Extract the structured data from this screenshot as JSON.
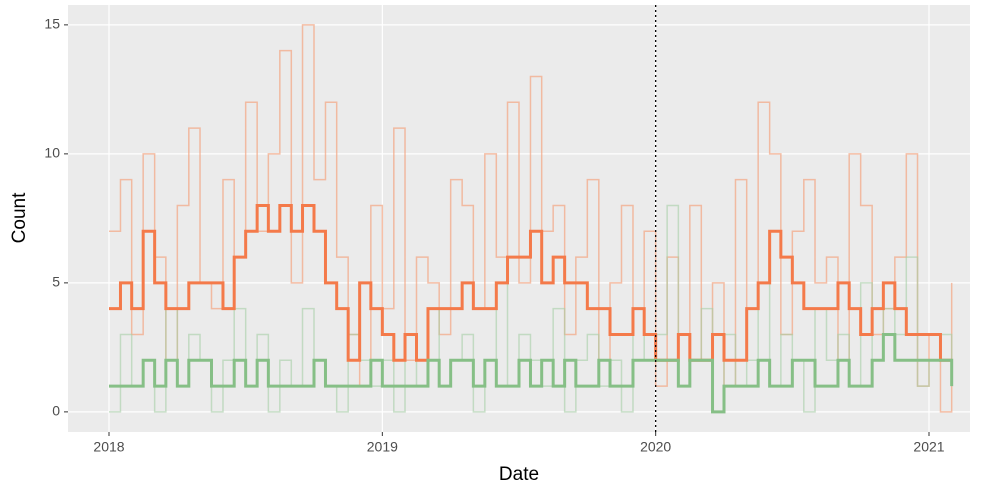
{
  "chart_data": {
    "type": "line",
    "step": true,
    "x_label": "Date",
    "y_label": "Count",
    "xlim": [
      2017.85,
      2021.15
    ],
    "ylim": [
      -0.78,
      15.77
    ],
    "xticks": [
      2018,
      2019,
      2020,
      2021
    ],
    "yticks": [
      0,
      5,
      10,
      15
    ],
    "grid": true,
    "vline": 2020,
    "x": [
      2018,
      2018.042,
      2018.083,
      2018.125,
      2018.167,
      2018.208,
      2018.25,
      2018.292,
      2018.333,
      2018.375,
      2018.417,
      2018.458,
      2018.5,
      2018.542,
      2018.583,
      2018.625,
      2018.667,
      2018.708,
      2018.75,
      2018.792,
      2018.833,
      2018.875,
      2018.917,
      2018.958,
      2019,
      2019.042,
      2019.083,
      2019.125,
      2019.167,
      2019.208,
      2019.25,
      2019.292,
      2019.333,
      2019.375,
      2019.417,
      2019.458,
      2019.5,
      2019.542,
      2019.583,
      2019.625,
      2019.667,
      2019.708,
      2019.75,
      2019.792,
      2019.833,
      2019.875,
      2019.917,
      2019.958,
      2020,
      2020.042,
      2020.083,
      2020.125,
      2020.167,
      2020.208,
      2020.25,
      2020.292,
      2020.333,
      2020.375,
      2020.417,
      2020.458,
      2020.5,
      2020.542,
      2020.583,
      2020.625,
      2020.667,
      2020.708,
      2020.75,
      2020.792,
      2020.833,
      2020.875,
      2020.917,
      2020.958,
      2021,
      2021.042,
      2021.083
    ],
    "series": [
      {
        "color": "#f4a582",
        "opacity": 0.7,
        "width": 1.5,
        "values": [
          7,
          9,
          3,
          10,
          6,
          2,
          8,
          11,
          5,
          4,
          9,
          6,
          12,
          7,
          10,
          14,
          5,
          15,
          9,
          12,
          6,
          3,
          1,
          8,
          4,
          11,
          2,
          6,
          5,
          3,
          9,
          8,
          4,
          10,
          6,
          12,
          5,
          13,
          7,
          8,
          3,
          6,
          9,
          2,
          5,
          8,
          4,
          7,
          1,
          6,
          3,
          8,
          2,
          5,
          1,
          9,
          4,
          12,
          10,
          3,
          7,
          9,
          5,
          6,
          2,
          10,
          8,
          3,
          4,
          6,
          10,
          1,
          3,
          0,
          5
        ]
      },
      {
        "color": "#a6cfa6",
        "opacity": 0.6,
        "width": 1.5,
        "values": [
          0,
          3,
          1,
          2,
          0,
          4,
          1,
          3,
          2,
          0,
          2,
          4,
          1,
          3,
          0,
          2,
          1,
          4,
          2,
          1,
          0,
          3,
          2,
          1,
          2,
          0,
          3,
          1,
          4,
          1,
          2,
          3,
          0,
          2,
          5,
          1,
          3,
          2,
          1,
          4,
          0,
          2,
          3,
          1,
          2,
          0,
          4,
          2,
          3,
          8,
          1,
          2,
          4,
          0,
          3,
          1,
          2,
          5,
          1,
          3,
          2,
          0,
          4,
          2,
          3,
          1,
          5,
          2,
          4,
          3,
          6,
          1,
          2,
          3,
          1
        ]
      },
      {
        "color": "#f47a4a",
        "opacity": 1,
        "width": 3,
        "values": [
          4,
          5,
          4,
          7,
          5,
          4,
          4,
          5,
          5,
          5,
          4,
          6,
          7,
          8,
          7,
          8,
          7,
          8,
          7,
          5,
          4,
          2,
          5,
          4,
          3,
          2,
          3,
          2,
          4,
          4,
          4,
          5,
          4,
          4,
          5,
          6,
          6,
          7,
          5,
          6,
          5,
          5,
          4,
          4,
          3,
          3,
          4,
          3,
          2,
          2,
          3,
          2,
          2,
          3,
          2,
          2,
          4,
          5,
          7,
          6,
          5,
          4,
          4,
          4,
          5,
          4,
          3,
          4,
          5,
          4,
          3,
          3,
          3,
          2,
          2
        ]
      },
      {
        "color": "#86bf86",
        "opacity": 1,
        "width": 3,
        "values": [
          1,
          1,
          1,
          2,
          1,
          2,
          1,
          2,
          2,
          1,
          1,
          2,
          1,
          2,
          1,
          1,
          1,
          1,
          2,
          1,
          1,
          1,
          1,
          2,
          1,
          1,
          1,
          1,
          2,
          1,
          2,
          2,
          1,
          2,
          1,
          1,
          2,
          1,
          2,
          1,
          2,
          1,
          1,
          2,
          1,
          1,
          2,
          2,
          2,
          2,
          1,
          2,
          2,
          0,
          1,
          1,
          1,
          2,
          1,
          1,
          2,
          2,
          1,
          1,
          2,
          1,
          1,
          2,
          3,
          2,
          2,
          2,
          2,
          2,
          1
        ]
      }
    ]
  }
}
